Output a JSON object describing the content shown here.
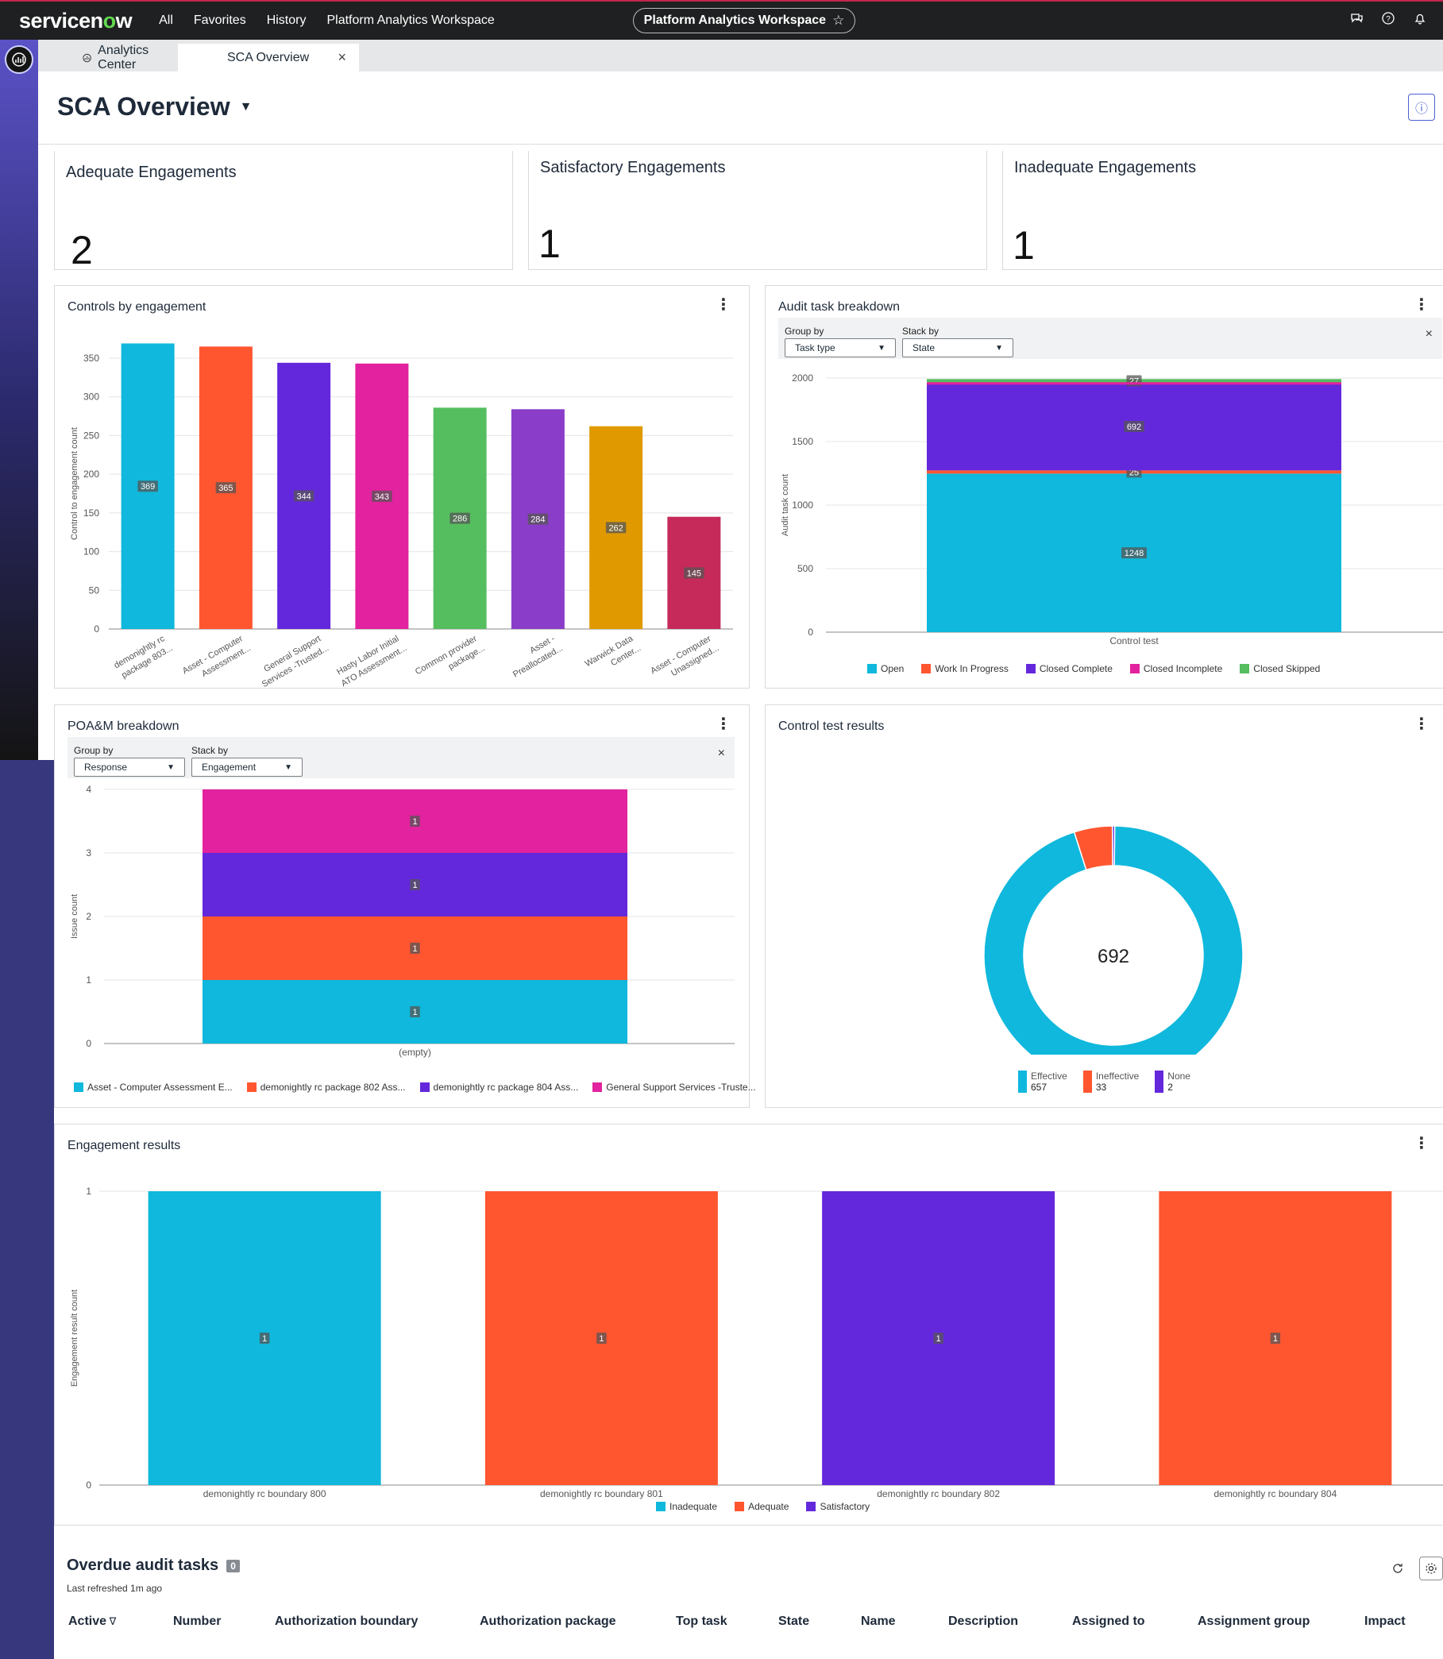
{
  "nav": {
    "logo_pre": "servicen",
    "logo_o": "o",
    "logo_post": "w",
    "links": [
      "All",
      "Favorites",
      "History",
      "Platform Analytics Workspace"
    ],
    "workspace_pill": "Platform Analytics Workspace",
    "icons": [
      "chat-icon",
      "help-icon",
      "bell-icon"
    ]
  },
  "tabs": [
    {
      "label": "Analytics Center"
    },
    {
      "label": "SCA Overview"
    }
  ],
  "page": {
    "title": "SCA Overview"
  },
  "kpis": [
    {
      "label": "Adequate Engagements",
      "value": "2"
    },
    {
      "label": "Satisfactory Engagements",
      "value": "1"
    },
    {
      "label": "Inadequate Engagements",
      "value": "1"
    }
  ],
  "colors": {
    "cyan": "#0fb8dc",
    "orange": "#ff5630",
    "purple": "#6428dc",
    "magenta": "#e2229e",
    "green": "#55be5f",
    "violet": "#8a3dc8",
    "amber": "#e09a00",
    "crimson": "#c52a5a",
    "closed_skipped": "#55be5f"
  },
  "controls_card": {
    "title": "Controls by engagement",
    "chart_data": {
      "type": "bar",
      "ylabel": "Control to engagement count",
      "ylim": [
        0,
        370
      ],
      "yticks": [
        "0",
        "50",
        "100",
        "150",
        "200",
        "250",
        "300",
        "350"
      ],
      "categories": [
        [
          "demonightly rc",
          "package 803..."
        ],
        [
          "Asset - Computer",
          "Assessment..."
        ],
        [
          "General Support",
          "Services -Trusted..."
        ],
        [
          "Hasty Labor Initial",
          "ATO Assessment..."
        ],
        [
          "Common provider",
          "package..."
        ],
        [
          "Asset -",
          "Preallocated..."
        ],
        [
          "Warwick Data",
          "Center..."
        ],
        [
          "Asset - Computer",
          "Unassigned..."
        ]
      ],
      "values": [
        369,
        365,
        344,
        343,
        286,
        284,
        262,
        145
      ],
      "bar_colors": [
        "#0fb8dc",
        "#ff5630",
        "#6428dc",
        "#e2229e",
        "#55be5f",
        "#8a3dc8",
        "#e09a00",
        "#c52a5a"
      ]
    }
  },
  "audit_card": {
    "title": "Audit task breakdown",
    "group_by_label": "Group by",
    "group_by_value": "Task type",
    "stack_by_label": "Stack by",
    "stack_by_value": "State",
    "chart_data": {
      "type": "bar",
      "stacked": true,
      "ylabel": "Audit task count",
      "ylim": [
        0,
        2000
      ],
      "yticks": [
        "0",
        "500",
        "1000",
        "1500",
        "2000"
      ],
      "categories": [
        "Control test"
      ],
      "series": [
        {
          "name": "Open",
          "values": [
            1248
          ],
          "color": "#0fb8dc"
        },
        {
          "name": "Work In Progress",
          "values": [
            25
          ],
          "color": "#ff5630"
        },
        {
          "name": "Closed Complete",
          "values": [
            692
          ],
          "color": "#6428dc"
        },
        {
          "name": "Closed Incomplete",
          "values": [
            0
          ],
          "color": "#e2229e"
        },
        {
          "name": "Closed Skipped",
          "values": [
            27
          ],
          "color": "#55be5f"
        }
      ]
    }
  },
  "poam_card": {
    "title": "POA&M breakdown",
    "group_by_label": "Group by",
    "group_by_value": "Response",
    "stack_by_label": "Stack by",
    "stack_by_value": "Engagement",
    "chart_data": {
      "type": "bar",
      "stacked": true,
      "ylabel": "Issue count",
      "ylim": [
        0,
        4
      ],
      "yticks": [
        "0",
        "1",
        "2",
        "3",
        "4"
      ],
      "categories": [
        "(empty)"
      ],
      "series": [
        {
          "name": "Asset - Computer Assessment E...",
          "values": [
            1
          ],
          "color": "#0fb8dc"
        },
        {
          "name": "demonightly rc package 802 Ass...",
          "values": [
            1
          ],
          "color": "#ff5630"
        },
        {
          "name": "demonightly rc package 804 Ass...",
          "values": [
            1
          ],
          "color": "#6428dc"
        },
        {
          "name": "General Support Services -Truste...",
          "values": [
            1
          ],
          "color": "#e2229e"
        }
      ]
    }
  },
  "control_test_card": {
    "title": "Control test results",
    "center_label": "692",
    "chart_data": {
      "type": "pie",
      "slices": [
        {
          "name": "Effective",
          "value": 657,
          "color": "#0fb8dc"
        },
        {
          "name": "Ineffective",
          "value": 33,
          "color": "#ff5630"
        },
        {
          "name": "None",
          "value": 2,
          "color": "#6428dc"
        }
      ],
      "legend_values": [
        "657",
        "33",
        "2"
      ]
    }
  },
  "engagement_card": {
    "title": "Engagement results",
    "chart_data": {
      "type": "bar",
      "ylabel": "Engagement result count",
      "ylim": [
        0,
        1
      ],
      "yticks": [
        "0",
        "1"
      ],
      "categories": [
        "demonightly rc boundary 800",
        "demonightly rc boundary 801",
        "demonightly rc boundary 802",
        "demonightly rc boundary 804"
      ],
      "values": [
        1,
        1,
        1,
        1
      ],
      "bar_colors": [
        "#0fb8dc",
        "#ff5630",
        "#6428dc",
        "#ff5630"
      ],
      "legend": [
        {
          "name": "Inadequate",
          "color": "#0fb8dc"
        },
        {
          "name": "Adequate",
          "color": "#ff5630"
        },
        {
          "name": "Satisfactory",
          "color": "#6428dc"
        }
      ]
    }
  },
  "overdue": {
    "title": "Overdue audit tasks",
    "count": "0",
    "refreshed": "Last refreshed 1m ago",
    "columns": [
      "Active",
      "Number",
      "Authorization boundary",
      "Authorization package",
      "Top task",
      "State",
      "Name",
      "Description",
      "Assigned to",
      "Assignment group",
      "Impact"
    ]
  }
}
